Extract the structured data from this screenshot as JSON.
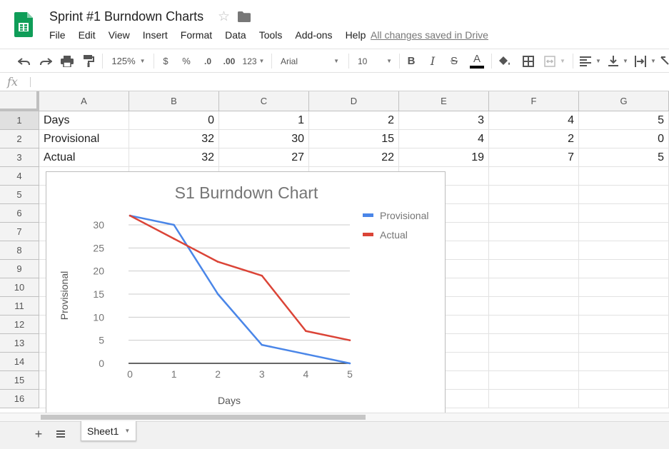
{
  "document": {
    "title": "Sprint #1 Burndown Charts",
    "save_status": "All changes saved in Drive"
  },
  "menu": [
    "File",
    "Edit",
    "View",
    "Insert",
    "Format",
    "Data",
    "Tools",
    "Add-ons",
    "Help"
  ],
  "toolbar": {
    "zoom": "125%",
    "currency": "$",
    "percent": "%",
    "decrease_decimals": ".0",
    "increase_decimals": ".00",
    "more_formats": "123",
    "font": "Arial",
    "font_size": "10",
    "bold": "B",
    "italic": "I",
    "strikethrough": "S",
    "text_color_letter": "A"
  },
  "formula_bar": {
    "icon": "fx",
    "value": ""
  },
  "grid": {
    "columns": [
      "A",
      "B",
      "C",
      "D",
      "E",
      "F",
      "G"
    ],
    "row_numbers": [
      "1",
      "2",
      "3",
      "4",
      "5",
      "6",
      "7",
      "8",
      "9",
      "10",
      "11",
      "12",
      "13",
      "14",
      "15",
      "16"
    ],
    "rows": [
      [
        "Days",
        "0",
        "1",
        "2",
        "3",
        "4",
        "5"
      ],
      [
        "Provisional",
        "32",
        "30",
        "15",
        "4",
        "2",
        "0"
      ],
      [
        "Actual",
        "32",
        "27",
        "22",
        "19",
        "7",
        "5"
      ]
    ]
  },
  "chart_data": {
    "type": "line",
    "title": "S1 Burndown Chart",
    "xlabel": "Days",
    "ylabel": "Provisional",
    "x": [
      0,
      1,
      2,
      3,
      4,
      5
    ],
    "xlim": [
      0,
      5
    ],
    "ylim": [
      0,
      30
    ],
    "yticks": [
      0,
      5,
      10,
      15,
      20,
      25,
      30
    ],
    "grid": true,
    "legend_position": "right",
    "series": [
      {
        "name": "Provisional",
        "values": [
          32,
          30,
          15,
          4,
          2,
          0
        ],
        "color": "#4a86e8"
      },
      {
        "name": "Actual",
        "values": [
          32,
          27,
          22,
          19,
          7,
          5
        ],
        "color": "#db4437"
      }
    ]
  },
  "sheets": {
    "active": "Sheet1"
  },
  "colors": {
    "sheets_green": "#0f9d58",
    "text_color_bar": "#000000"
  },
  "icons": {
    "logo": "sheets-logo-icon",
    "star": "star-icon",
    "folder": "folder-icon",
    "undo": "undo-icon",
    "redo": "redo-icon",
    "print": "print-icon",
    "paint_format": "paint-format-icon",
    "fill": "fill-color-icon",
    "borders": "borders-icon",
    "merge": "merge-cells-icon",
    "align": "align-left-icon",
    "valign": "vertical-align-icon",
    "wrap": "text-wrap-icon",
    "rotate": "text-rotate-icon",
    "add_sheet": "add-sheet-icon",
    "all_sheets": "all-sheets-icon"
  }
}
